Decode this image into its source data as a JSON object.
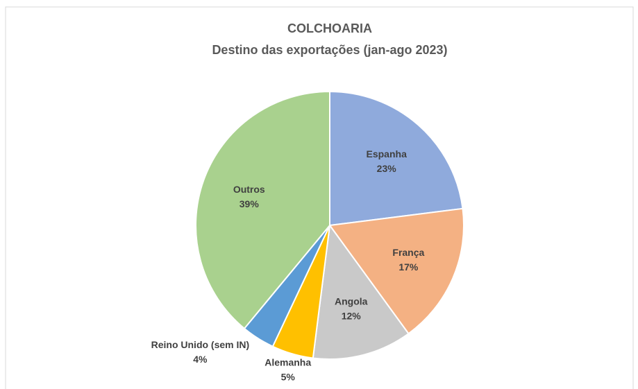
{
  "chart_data": {
    "type": "pie",
    "title": "COLCHOARIA",
    "subtitle": "Destino das exportações (jan-ago 2023)",
    "categories": [
      "Espanha",
      "França",
      "Angola",
      "Alemanha",
      "Reino Unido (sem IN)",
      "Outros"
    ],
    "values": [
      23,
      17,
      12,
      5,
      4,
      39
    ],
    "value_labels": [
      "23%",
      "17%",
      "12%",
      "5%",
      "4%",
      "39%"
    ],
    "colors": [
      "#8faadc",
      "#f4b183",
      "#c9c9c9",
      "#ffc000",
      "#5b9bd5",
      "#a9d18e"
    ]
  }
}
